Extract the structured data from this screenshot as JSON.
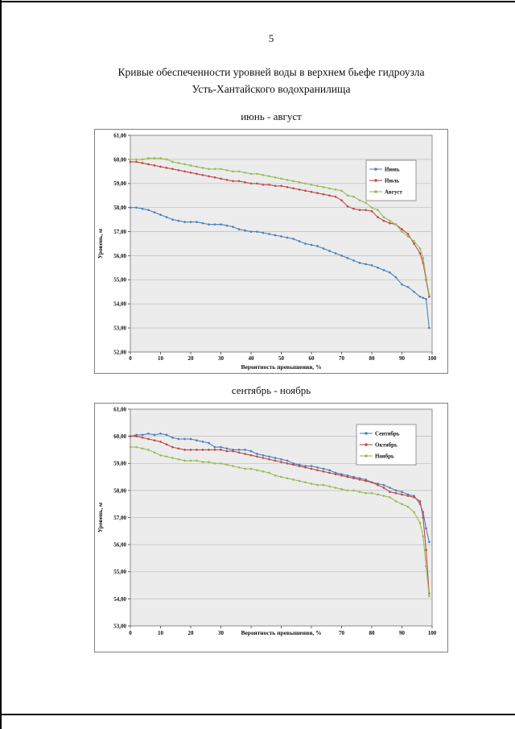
{
  "page": {
    "number": "5",
    "title_line1": "Кривые обеспеченности уровней воды в верхнем бьефе гидроузла",
    "title_line2": "Усть-Хантайского водохранилища"
  },
  "chart_data": [
    {
      "type": "line",
      "title": "июнь - август",
      "xlabel": "Вероятность превышения, %",
      "ylabel": "Уровень, м",
      "xlim": [
        0,
        100
      ],
      "ylim": [
        52,
        61
      ],
      "xticks": [
        0,
        10,
        20,
        30,
        40,
        50,
        60,
        70,
        80,
        90,
        100
      ],
      "yticks": [
        52,
        53,
        54,
        55,
        56,
        57,
        58,
        59,
        60,
        61
      ],
      "ytick_labels": [
        "52,00",
        "53,00",
        "54,00",
        "55,00",
        "56,00",
        "57,00",
        "58,00",
        "59,00",
        "60,00",
        "61,00"
      ],
      "grid": "horizontal",
      "plot_bg": "#ececec",
      "legend": {
        "position": "inside-right",
        "offset_y": 31
      },
      "x": [
        0,
        2,
        4,
        6,
        8,
        10,
        12,
        14,
        16,
        18,
        20,
        22,
        24,
        26,
        28,
        30,
        32,
        34,
        36,
        38,
        40,
        42,
        44,
        46,
        48,
        50,
        52,
        54,
        56,
        58,
        60,
        62,
        64,
        66,
        68,
        70,
        72,
        74,
        76,
        78,
        80,
        82,
        84,
        86,
        88,
        90,
        92,
        94,
        96,
        97,
        98,
        99
      ],
      "series": [
        {
          "name": "Июнь",
          "color": "#4f81bd",
          "y": [
            58.0,
            58.0,
            57.95,
            57.9,
            57.8,
            57.7,
            57.6,
            57.5,
            57.45,
            57.4,
            57.4,
            57.4,
            57.35,
            57.3,
            57.3,
            57.3,
            57.25,
            57.2,
            57.1,
            57.05,
            57.0,
            57.0,
            56.95,
            56.9,
            56.85,
            56.8,
            56.75,
            56.7,
            56.6,
            56.5,
            56.45,
            56.4,
            56.3,
            56.2,
            56.1,
            56.0,
            55.9,
            55.8,
            55.7,
            55.65,
            55.6,
            55.5,
            55.4,
            55.3,
            55.1,
            54.8,
            54.7,
            54.5,
            54.3,
            54.25,
            54.2,
            53.0
          ]
        },
        {
          "name": "Июль",
          "color": "#be4b48",
          "y": [
            59.9,
            59.9,
            59.85,
            59.8,
            59.75,
            59.7,
            59.65,
            59.6,
            59.55,
            59.5,
            59.45,
            59.4,
            59.35,
            59.3,
            59.25,
            59.2,
            59.15,
            59.1,
            59.1,
            59.05,
            59.0,
            59.0,
            58.95,
            58.95,
            58.9,
            58.9,
            58.85,
            58.8,
            58.75,
            58.7,
            58.65,
            58.6,
            58.55,
            58.5,
            58.45,
            58.3,
            58.05,
            57.95,
            57.9,
            57.9,
            57.85,
            57.6,
            57.45,
            57.35,
            57.3,
            57.1,
            56.9,
            56.5,
            56.1,
            55.7,
            55.0,
            54.3
          ]
        },
        {
          "name": "Август",
          "color": "#9bbb59",
          "y": [
            60.0,
            60.0,
            60.0,
            60.05,
            60.05,
            60.05,
            60.0,
            59.9,
            59.85,
            59.8,
            59.75,
            59.7,
            59.65,
            59.6,
            59.6,
            59.6,
            59.55,
            59.5,
            59.5,
            59.45,
            59.4,
            59.4,
            59.35,
            59.3,
            59.25,
            59.2,
            59.15,
            59.1,
            59.05,
            59.0,
            58.95,
            58.9,
            58.85,
            58.8,
            58.75,
            58.7,
            58.5,
            58.45,
            58.3,
            58.2,
            58.0,
            57.9,
            57.6,
            57.45,
            57.3,
            57.0,
            56.8,
            56.6,
            56.3,
            55.9,
            55.1,
            54.4
          ]
        }
      ]
    },
    {
      "type": "line",
      "title": "сентябрь - ноябрь",
      "xlabel": "Вероятность превышения, %",
      "ylabel": "Уровень, м",
      "xlim": [
        0,
        100
      ],
      "ylim": [
        53,
        61
      ],
      "xticks": [
        0,
        10,
        20,
        30,
        40,
        50,
        60,
        70,
        80,
        90,
        100
      ],
      "yticks": [
        53,
        54,
        55,
        56,
        57,
        58,
        59,
        60,
        61
      ],
      "ytick_labels": [
        "53,00",
        "54,00",
        "55,00",
        "56,00",
        "57,00",
        "58,00",
        "59,00",
        "60,00",
        "61,00"
      ],
      "grid": "horizontal",
      "plot_bg": "#ececec",
      "legend": {
        "position": "inside-right",
        "offset_y": 19
      },
      "x": [
        0,
        2,
        4,
        6,
        8,
        10,
        12,
        14,
        16,
        18,
        20,
        22,
        24,
        26,
        28,
        30,
        32,
        34,
        36,
        38,
        40,
        42,
        44,
        46,
        48,
        50,
        52,
        54,
        56,
        58,
        60,
        62,
        64,
        66,
        68,
        70,
        72,
        74,
        76,
        78,
        80,
        82,
        84,
        86,
        88,
        90,
        92,
        94,
        96,
        97,
        98,
        99
      ],
      "series": [
        {
          "name": "Сентябрь",
          "color": "#4f81bd",
          "y": [
            60.0,
            60.05,
            60.05,
            60.1,
            60.05,
            60.1,
            60.05,
            59.95,
            59.9,
            59.9,
            59.9,
            59.85,
            59.8,
            59.75,
            59.6,
            59.6,
            59.55,
            59.5,
            59.5,
            59.5,
            59.45,
            59.35,
            59.3,
            59.25,
            59.2,
            59.15,
            59.1,
            59.0,
            58.95,
            58.9,
            58.9,
            58.85,
            58.8,
            58.75,
            58.65,
            58.6,
            58.55,
            58.5,
            58.45,
            58.4,
            58.3,
            58.25,
            58.2,
            58.1,
            58.0,
            57.95,
            57.85,
            57.8,
            57.5,
            57.2,
            56.6,
            56.1
          ]
        },
        {
          "name": "Октябрь",
          "color": "#be4b48",
          "y": [
            60.0,
            60.0,
            59.95,
            59.9,
            59.85,
            59.8,
            59.7,
            59.6,
            59.55,
            59.5,
            59.5,
            59.5,
            59.5,
            59.5,
            59.5,
            59.5,
            59.45,
            59.45,
            59.4,
            59.35,
            59.3,
            59.25,
            59.2,
            59.15,
            59.1,
            59.05,
            59.0,
            58.95,
            58.9,
            58.85,
            58.8,
            58.75,
            58.7,
            58.65,
            58.6,
            58.55,
            58.5,
            58.45,
            58.4,
            58.35,
            58.3,
            58.2,
            58.1,
            57.95,
            57.9,
            57.85,
            57.8,
            57.75,
            57.6,
            57.0,
            55.8,
            54.2
          ]
        },
        {
          "name": "Ноябрь",
          "color": "#9bbb59",
          "y": [
            59.6,
            59.6,
            59.55,
            59.5,
            59.4,
            59.3,
            59.25,
            59.2,
            59.15,
            59.1,
            59.1,
            59.1,
            59.05,
            59.05,
            59.0,
            59.0,
            58.95,
            58.9,
            58.85,
            58.8,
            58.8,
            58.75,
            58.7,
            58.65,
            58.55,
            58.5,
            58.45,
            58.4,
            58.35,
            58.3,
            58.25,
            58.2,
            58.2,
            58.15,
            58.1,
            58.05,
            58.0,
            58.0,
            57.95,
            57.9,
            57.9,
            57.85,
            57.8,
            57.75,
            57.6,
            57.5,
            57.4,
            57.2,
            56.8,
            56.3,
            55.2,
            54.1
          ]
        }
      ]
    }
  ]
}
